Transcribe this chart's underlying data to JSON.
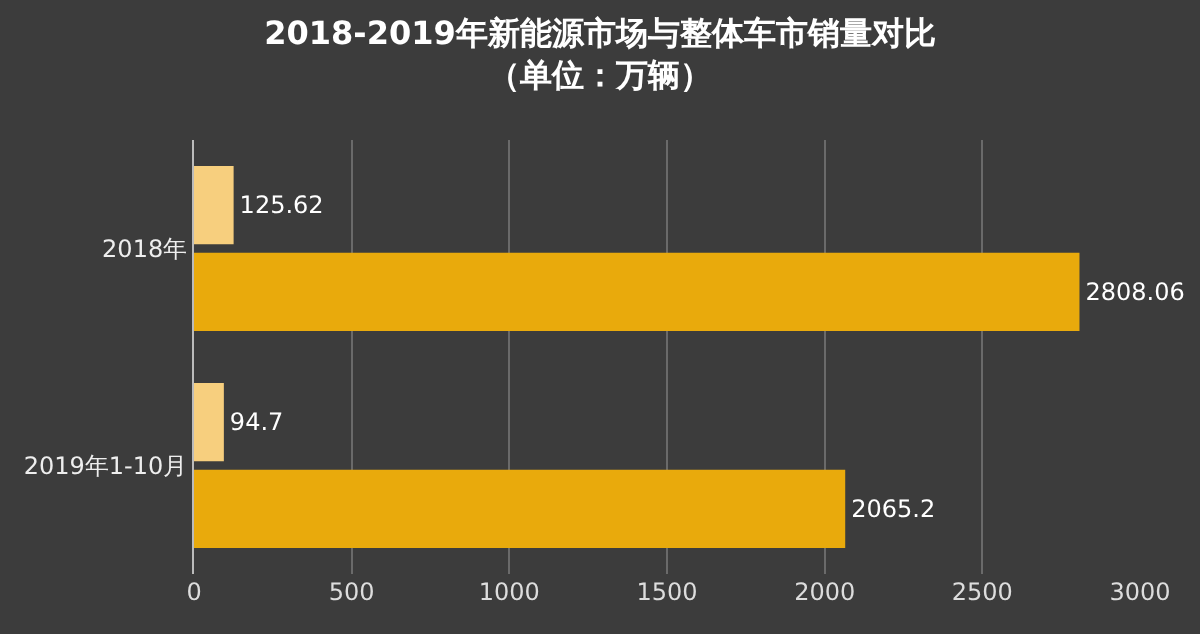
{
  "chart_data": {
    "type": "bar",
    "orientation": "horizontal",
    "title": "2018-2019年新能源市场与整体车市销量对比",
    "subtitle": "（单位：万辆）",
    "categories": [
      "2018年",
      "2019年1-10月"
    ],
    "series": [
      {
        "color": "#f7cf7e",
        "values": [
          125.62,
          94.7
        ]
      },
      {
        "color": "#e9aa0c",
        "values": [
          2808.06,
          2065.2
        ]
      }
    ],
    "xlim": [
      0,
      3000
    ],
    "xticks": [
      0,
      500,
      1000,
      1500,
      2000,
      2500,
      3000
    ],
    "grid": "x",
    "data_labels": true
  }
}
